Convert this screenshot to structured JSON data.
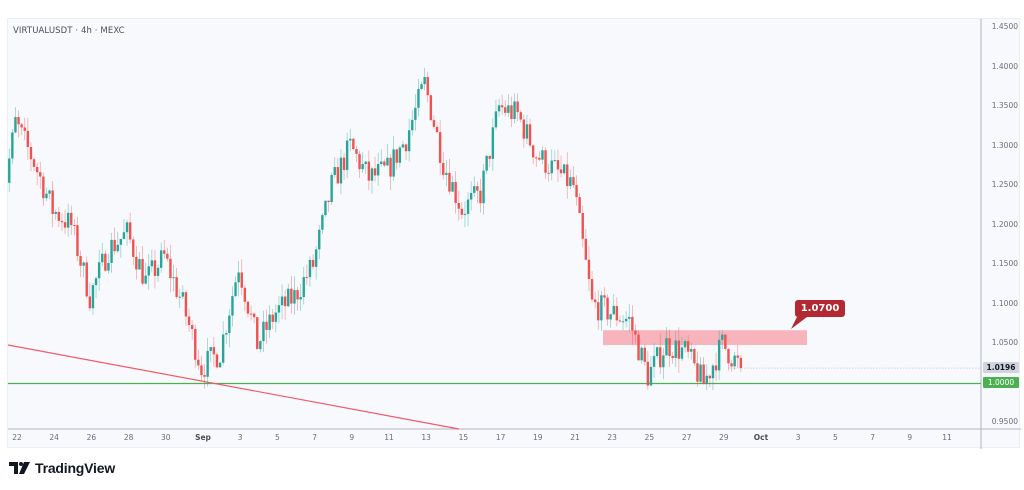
{
  "header": {
    "symbol_line": "VIRTUALUSDT · 4h · MEXC"
  },
  "branding": {
    "logo_text": "TradingView"
  },
  "colors": {
    "up": "#26a69a",
    "down": "#ef5350",
    "support_line": "#4caf50",
    "trend_line": "#f05a6a",
    "zone_fill": "#f7a8b0",
    "callout_bg": "#b22833",
    "last_price_bg": "#d1d4dc"
  },
  "price_axis": {
    "ticks": [
      "1.4500",
      "1.4000",
      "1.3500",
      "1.3000",
      "1.2500",
      "1.2000",
      "1.1500",
      "1.1000",
      "1.0500",
      "1.0000",
      "0.9500"
    ]
  },
  "time_axis": {
    "ticks": [
      "22",
      "24",
      "26",
      "28",
      "30",
      "Sep",
      "3",
      "5",
      "7",
      "9",
      "11",
      "13",
      "15",
      "17",
      "19",
      "21",
      "23",
      "25",
      "27",
      "29",
      "Oct",
      "3",
      "5",
      "7",
      "9",
      "11"
    ]
  },
  "badges": {
    "last_price": "1.0196",
    "support_price": "1.0000"
  },
  "annotations": {
    "resistance_label": "1.0700"
  },
  "chart_data": {
    "type": "candlestick",
    "title": "VIRTUALUSDT · 4h · MEXC",
    "xlabel": "",
    "ylabel": "",
    "ylim": [
      0.95,
      1.45
    ],
    "grid": false,
    "x_ticks": [
      "22",
      "24",
      "26",
      "28",
      "30",
      "Sep",
      "3",
      "5",
      "7",
      "9",
      "11",
      "13",
      "15",
      "17",
      "19",
      "21",
      "23",
      "25",
      "27",
      "29",
      "Oct",
      "3",
      "5",
      "7",
      "9",
      "11"
    ],
    "y_ticks": [
      1.45,
      1.4,
      1.35,
      1.3,
      1.25,
      1.2,
      1.15,
      1.1,
      1.05,
      1.0,
      0.95
    ],
    "close_path": [
      [
        "Aug 21",
        1.19
      ],
      [
        "Aug 22",
        1.33
      ],
      [
        "Aug 23",
        1.28
      ],
      [
        "Aug 24",
        1.22
      ],
      [
        "Aug 25",
        1.2
      ],
      [
        "Aug 26",
        1.11
      ],
      [
        "Aug 27",
        1.17
      ],
      [
        "Aug 28",
        1.19
      ],
      [
        "Aug 29",
        1.13
      ],
      [
        "Aug 30",
        1.16
      ],
      [
        "Aug 31",
        1.1
      ],
      [
        "Sep 1",
        1.02
      ],
      [
        "Sep 2",
        1.04
      ],
      [
        "Sep 3",
        1.15
      ],
      [
        "Sep 4",
        1.05
      ],
      [
        "Sep 5",
        1.09
      ],
      [
        "Sep 6",
        1.11
      ],
      [
        "Sep 7",
        1.15
      ],
      [
        "Sep 8",
        1.25
      ],
      [
        "Sep 9",
        1.3
      ],
      [
        "Sep 10",
        1.26
      ],
      [
        "Sep 11",
        1.27
      ],
      [
        "Sep 12",
        1.31
      ],
      [
        "Sep 13",
        1.38
      ],
      [
        "Sep 14",
        1.28
      ],
      [
        "Sep 15",
        1.22
      ],
      [
        "Sep 16",
        1.24
      ],
      [
        "Sep 17",
        1.35
      ],
      [
        "Sep 18",
        1.34
      ],
      [
        "Sep 19",
        1.29
      ],
      [
        "Sep 20",
        1.27
      ],
      [
        "Sep 21",
        1.25
      ],
      [
        "Sep 22",
        1.1
      ],
      [
        "Sep 23",
        1.09
      ],
      [
        "Sep 24",
        1.08
      ],
      [
        "Sep 25",
        1.01
      ],
      [
        "Sep 26",
        1.05
      ],
      [
        "Sep 27",
        1.04
      ],
      [
        "Sep 28",
        1.0
      ],
      [
        "Sep 29",
        1.05
      ],
      [
        "Sep 30",
        1.02
      ]
    ],
    "series_high": 1.41,
    "series_low": 0.985,
    "last_price": 1.0196,
    "horizontal_lines": [
      {
        "name": "support",
        "price": 1.0,
        "color": "#4caf50"
      }
    ],
    "zones": [
      {
        "name": "resistance",
        "from_price": 1.05,
        "to_price": 1.07,
        "x_start": "Sep 22",
        "x_end": "Oct 3",
        "label": "1.0700"
      }
    ],
    "trend_lines": [
      {
        "name": "descending",
        "from": [
          "Aug 21",
          1.05
        ],
        "to": [
          "Sep 14",
          0.945
        ],
        "color": "#f05a6a"
      }
    ]
  }
}
